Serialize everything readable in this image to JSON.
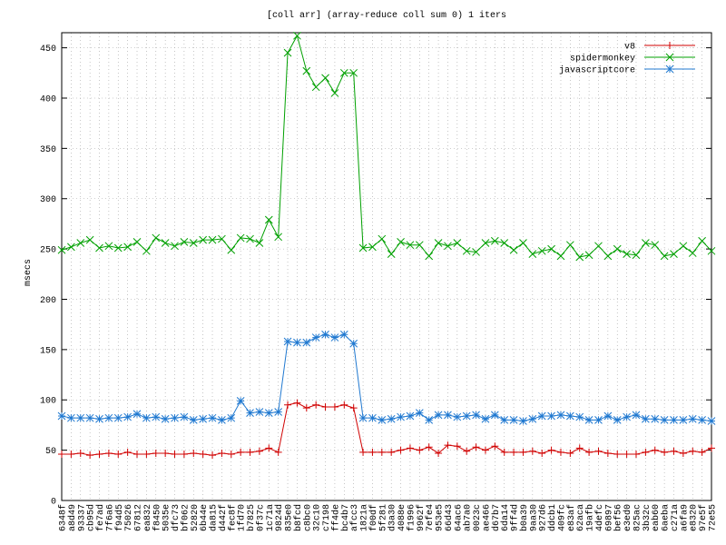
{
  "chart_data": {
    "type": "line",
    "title": "[coll arr] (array-reduce coll sum 0) 1 iters",
    "y_label": "msecs",
    "categories": [
      "6348f",
      "a8d49",
      "93337",
      "cb95d",
      "fe7ad",
      "7f6a6",
      "f94d5",
      "75026",
      "67812",
      "ea832",
      "f8450",
      "5035e",
      "dfc73",
      "bf062",
      "52820",
      "6b44e",
      "da815",
      "d442f",
      "fec8f",
      "1fd70",
      "b7825",
      "0f37c",
      "1c71a",
      "9824d",
      "835e0",
      "b8fcd",
      "c8bc0",
      "32c10",
      "c7198",
      "ff4de",
      "bc4b7",
      "afcc3",
      "1821a",
      "f00df",
      "5f281",
      "d3a30",
      "4088e",
      "f1996",
      "9962f",
      "7efe4",
      "953e5",
      "66d43",
      "64ac6",
      "ab7a0",
      "0023c",
      "ae466",
      "d67b7",
      "6da14",
      "9ff4d",
      "b0a39",
      "9aa30",
      "927d6",
      "ddcb1",
      "409fc",
      "e83af",
      "62aca",
      "19afb",
      "4defc",
      "69897",
      "bef56",
      "e3ed0",
      "825ac",
      "3b32c",
      "eab60",
      "6aeba",
      "c271a",
      "a6fa9",
      "e8320",
      "97e5f",
      "72e55"
    ],
    "series": [
      {
        "name": "v8",
        "color": "#d00000",
        "marker": "plus",
        "values": [
          46,
          46,
          47,
          45,
          46,
          47,
          46,
          48,
          46,
          46,
          47,
          47,
          46,
          46,
          47,
          46,
          45,
          47,
          46,
          48,
          48,
          49,
          52,
          48,
          95,
          97,
          92,
          95,
          93,
          93,
          95,
          92,
          48,
          48,
          48,
          48,
          50,
          52,
          50,
          53,
          47,
          55,
          54,
          49,
          53,
          50,
          54,
          48,
          48,
          48,
          49,
          47,
          50,
          48,
          47,
          52,
          48,
          49,
          47,
          46,
          46,
          46,
          48,
          50,
          48,
          49,
          47,
          49,
          48,
          52
        ]
      },
      {
        "name": "spidermonkey",
        "color": "#00a000",
        "marker": "cross",
        "values": [
          249,
          252,
          256,
          259,
          251,
          253,
          251,
          252,
          257,
          248,
          261,
          256,
          253,
          257,
          256,
          259,
          259,
          260,
          249,
          261,
          260,
          256,
          279,
          262,
          445,
          462,
          427,
          411,
          420,
          405,
          425,
          425,
          251,
          252,
          260,
          245,
          257,
          254,
          254,
          243,
          256,
          253,
          256,
          248,
          247,
          256,
          258,
          256,
          249,
          256,
          245,
          248,
          250,
          243,
          254,
          242,
          244,
          253,
          243,
          250,
          245,
          244,
          256,
          254,
          243,
          245,
          253,
          246,
          258,
          248
        ]
      },
      {
        "name": "javascriptcore",
        "color": "#1f78d0",
        "marker": "star",
        "values": [
          84,
          82,
          82,
          82,
          81,
          82,
          82,
          83,
          86,
          82,
          83,
          81,
          82,
          83,
          80,
          81,
          82,
          80,
          82,
          99,
          87,
          88,
          87,
          88,
          158,
          157,
          157,
          162,
          165,
          162,
          165,
          156,
          82,
          82,
          80,
          81,
          83,
          84,
          87,
          80,
          85,
          85,
          83,
          84,
          85,
          81,
          85,
          80,
          80,
          79,
          81,
          84,
          84,
          85,
          84,
          83,
          80,
          80,
          84,
          80,
          83,
          85,
          81,
          81,
          80,
          80,
          80,
          81,
          80,
          79
        ]
      }
    ],
    "ylim": [
      0,
      465
    ],
    "yticks": [
      0,
      50,
      100,
      150,
      200,
      250,
      300,
      350,
      400,
      450
    ],
    "grid": true,
    "legend": "top-right"
  }
}
